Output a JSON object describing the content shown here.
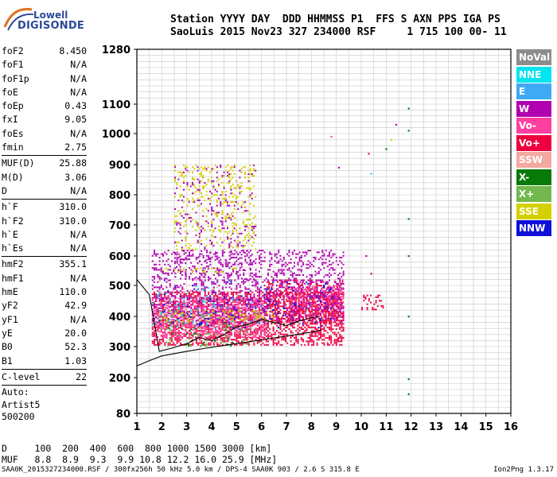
{
  "logo": {
    "line1": "Lowell",
    "line2": "DIGISONDE"
  },
  "header": {
    "line1": "Station YYYY DAY  DDD HHMMSS P1  FFS S AXN PPS IGA PS",
    "line2": "SaoLuis 2015 Nov23 327 234000 RSF     1 715 100 00- 11"
  },
  "params": {
    "group1": [
      {
        "name": "foF2",
        "value": "8.450"
      },
      {
        "name": "foF1",
        "value": "N/A"
      },
      {
        "name": "foF1p",
        "value": "N/A"
      },
      {
        "name": "foE",
        "value": "N/A"
      },
      {
        "name": "foEp",
        "value": "0.43"
      },
      {
        "name": "fxI",
        "value": "9.05"
      },
      {
        "name": "foEs",
        "value": "N/A"
      },
      {
        "name": "fmin",
        "value": "2.75"
      }
    ],
    "group2": [
      {
        "name": "MUF(D)",
        "value": "25.88"
      },
      {
        "name": "M(D)",
        "value": "3.06"
      },
      {
        "name": "D",
        "value": "N/A"
      }
    ],
    "group3": [
      {
        "name": "h`F",
        "value": "310.0"
      },
      {
        "name": "h`F2",
        "value": "310.0"
      },
      {
        "name": "h`E",
        "value": "N/A"
      },
      {
        "name": "h`Es",
        "value": "N/A"
      }
    ],
    "group4": [
      {
        "name": "hmF2",
        "value": "355.1"
      },
      {
        "name": "hmF1",
        "value": "N/A"
      },
      {
        "name": "hmE",
        "value": "110.0"
      },
      {
        "name": "yF2",
        "value": "42.9"
      },
      {
        "name": "yF1",
        "value": "N/A"
      },
      {
        "name": "yE",
        "value": "20.0"
      },
      {
        "name": "B0",
        "value": "52.3"
      },
      {
        "name": "B1",
        "value": "1.03"
      }
    ],
    "group5": [
      {
        "name": "C-level",
        "value": "22"
      }
    ],
    "notes": [
      "Auto:",
      "Artist5",
      "500200"
    ]
  },
  "legend": [
    {
      "label": "NoVal",
      "color": "#8c8c8c"
    },
    {
      "label": "NNE",
      "color": "#00e5ee"
    },
    {
      "label": "E",
      "color": "#3fa9f5"
    },
    {
      "label": "W",
      "color": "#b000b0"
    },
    {
      "label": "Vo-",
      "color": "#ff3fa0"
    },
    {
      "label": "Vo+",
      "color": "#ee0040"
    },
    {
      "label": "SSW",
      "color": "#f4a8a0"
    },
    {
      "label": "X-",
      "color": "#087a08"
    },
    {
      "label": "X+",
      "color": "#72b84c"
    },
    {
      "label": "SSE",
      "color": "#d4d000"
    },
    {
      "label": "NNW",
      "color": "#1010d8"
    }
  ],
  "bottom": {
    "line1": "D     100  200  400  600  800 1000 1500 3000 [km]",
    "line2": "MUF   8.8  8.9  9.3  9.9 10.8 12.2 16.0 25.9 [MHz]"
  },
  "footer": {
    "left": "SAA0K_2015327234000.RSF / 300fx256h 50 kHz 5.0 km / DPS-4 SAA0K 903 / 2.6 S 315.8 E",
    "right": "Ion2Png 1.3.17"
  },
  "chart_data": {
    "type": "scatter",
    "title": "",
    "xlabel": "",
    "ylabel": "",
    "xlim": [
      1,
      16
    ],
    "ylim": [
      80,
      1280
    ],
    "y_scale": "nonlinear (ionogram virtual height)",
    "x_ticks": [
      1,
      2,
      3,
      4,
      5,
      6,
      7,
      8,
      9,
      10,
      11,
      12,
      13,
      14,
      15,
      16
    ],
    "y_ticks": [
      80,
      200,
      300,
      400,
      500,
      600,
      700,
      800,
      900,
      1000,
      1100,
      1280
    ],
    "grid": true,
    "series": [
      {
        "name": "Vo+",
        "color": "#ee0040",
        "clusters": [
          {
            "f": [
              1.6,
              9.3
            ],
            "h": [
              300,
              480
            ],
            "density": 0.9
          },
          {
            "f": [
              6.2,
              9.3
            ],
            "h": [
              380,
              520
            ],
            "density": 0.7
          },
          {
            "f": [
              10.0,
              10.9
            ],
            "h": [
              420,
              470
            ],
            "density": 0.6
          }
        ]
      },
      {
        "name": "Vo-",
        "color": "#ff3fa0",
        "clusters": [
          {
            "f": [
              1.6,
              6.2
            ],
            "h": [
              330,
              460
            ],
            "density": 0.7
          },
          {
            "f": [
              7.0,
              9.3
            ],
            "h": [
              420,
              500
            ],
            "density": 0.5
          }
        ]
      },
      {
        "name": "W",
        "color": "#b000b0",
        "clusters": [
          {
            "f": [
              1.6,
              9.3
            ],
            "h": [
              380,
              620
            ],
            "density": 0.45
          },
          {
            "f": [
              2.5,
              5.8
            ],
            "h": [
              520,
              900
            ],
            "density": 0.15
          }
        ]
      },
      {
        "name": "SSE",
        "color": "#d4d000",
        "clusters": [
          {
            "f": [
              2.5,
              5.8
            ],
            "h": [
              620,
              900
            ],
            "density": 0.25
          },
          {
            "f": [
              1.9,
              6.5
            ],
            "h": [
              380,
              420
            ],
            "density": 0.35
          },
          {
            "f": [
              2.0,
              5.0
            ],
            "h": [
              540,
              560
            ],
            "density": 0.3
          }
        ]
      },
      {
        "name": "NNE",
        "color": "#00e5ee",
        "clusters": [
          {
            "f": [
              1.6,
              4.2
            ],
            "h": [
              360,
              500
            ],
            "density": 0.08
          }
        ]
      },
      {
        "name": "X+",
        "color": "#72b84c",
        "clusters": [
          {
            "f": [
              1.8,
              6.0
            ],
            "h": [
              300,
              420
            ],
            "density": 0.1
          }
        ]
      },
      {
        "name": "X-",
        "color": "#087a08",
        "clusters": [
          {
            "f": [
              2.2,
              5.0
            ],
            "h": [
              300,
              380
            ],
            "density": 0.06
          }
        ]
      },
      {
        "name": "NNW",
        "color": "#1010d8",
        "clusters": [
          {
            "f": [
              1.8,
              9.0
            ],
            "h": [
              360,
              520
            ],
            "density": 0.08
          }
        ]
      },
      {
        "name": "E",
        "color": "#3fa9f5",
        "clusters": [
          {
            "f": [
              1.8,
              6.0
            ],
            "h": [
              360,
              460
            ],
            "density": 0.05
          }
        ]
      },
      {
        "name": "SSW",
        "color": "#f4a8a0",
        "clusters": [
          {
            "f": [
              1.8,
              9.0
            ],
            "h": [
              360,
              520
            ],
            "density": 0.05
          }
        ]
      }
    ],
    "isolated_points": [
      {
        "f": 11.9,
        "h": 1085,
        "color": "#087a08"
      },
      {
        "f": 11.9,
        "h": 1010,
        "color": "#087a08"
      },
      {
        "f": 11.9,
        "h": 720,
        "color": "#087a08"
      },
      {
        "f": 11.9,
        "h": 600,
        "color": "#087a08"
      },
      {
        "f": 11.9,
        "h": 400,
        "color": "#087a08"
      },
      {
        "f": 11.9,
        "h": 195,
        "color": "#087a08"
      },
      {
        "f": 11.9,
        "h": 145,
        "color": "#087a08"
      },
      {
        "f": 11.4,
        "h": 1030,
        "color": "#b000b0"
      },
      {
        "f": 11.2,
        "h": 980,
        "color": "#d4d000"
      },
      {
        "f": 11.0,
        "h": 950,
        "color": "#087a08"
      },
      {
        "f": 10.3,
        "h": 935,
        "color": "#ee0040"
      },
      {
        "f": 10.4,
        "h": 870,
        "color": "#00e5ee"
      },
      {
        "f": 9.1,
        "h": 890,
        "color": "#b000b0"
      },
      {
        "f": 8.8,
        "h": 990,
        "color": "#ff3fa0"
      },
      {
        "f": 10.4,
        "h": 540,
        "color": "#ee0040"
      },
      {
        "f": 10.2,
        "h": 600,
        "color": "#b000b0"
      }
    ],
    "profile_curve": {
      "color": "#000000",
      "f": [
        1.0,
        1.5,
        2.0,
        3.0,
        4.0,
        5.0,
        6.0,
        7.0,
        8.0,
        8.4
      ],
      "h": [
        238,
        255,
        270,
        285,
        298,
        310,
        322,
        335,
        348,
        355
      ]
    },
    "trace_curve": {
      "color": "#000000",
      "f": [
        1.0,
        1.5,
        1.9,
        2.4,
        3.0,
        3.5,
        4.0,
        4.5,
        5.0,
        5.5,
        6.0,
        6.5,
        7.0,
        7.5,
        8.0,
        8.3
      ],
      "h": [
        520,
        470,
        285,
        295,
        310,
        330,
        320,
        340,
        365,
        375,
        390,
        380,
        370,
        385,
        395,
        400
      ]
    }
  }
}
